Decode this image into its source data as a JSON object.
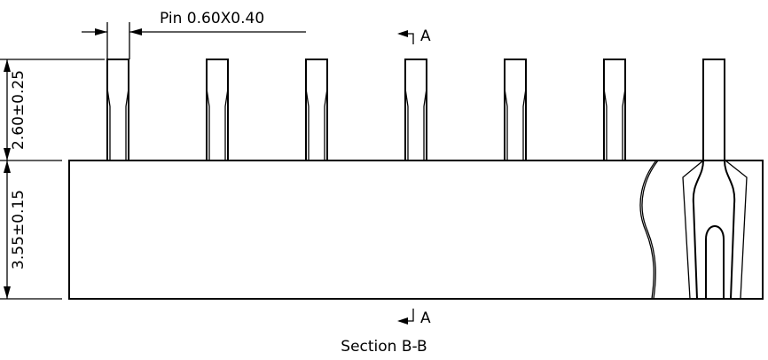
{
  "pin_label": "Pin 0.60X0.40",
  "section_marks": {
    "top": "A",
    "bottom": "A"
  },
  "dimensions": {
    "pin_height": "2.60±0.25",
    "body_height": "3.55±0.15"
  },
  "caption": "Section B-B"
}
